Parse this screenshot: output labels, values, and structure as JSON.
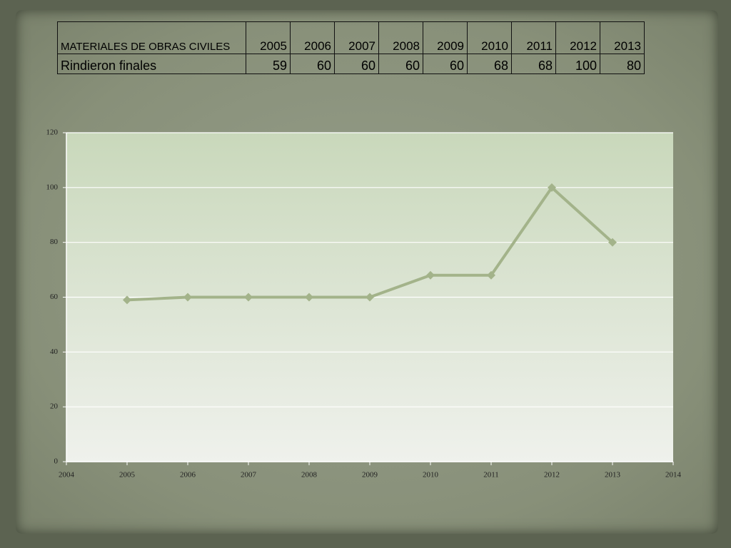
{
  "table": {
    "header": [
      "MATERIALES DE OBRAS CIVILES",
      "2005",
      "2006",
      "2007",
      "2008",
      "2009",
      "2010",
      "2011",
      "2012",
      "2013"
    ],
    "rows": [
      [
        "Rindieron finales",
        59,
        60,
        60,
        60,
        60,
        68,
        68,
        100,
        80
      ]
    ]
  },
  "chart_data": {
    "type": "line",
    "x": [
      2005,
      2006,
      2007,
      2008,
      2009,
      2010,
      2011,
      2012,
      2013
    ],
    "values": [
      59,
      60,
      60,
      60,
      60,
      68,
      68,
      100,
      80
    ],
    "color": "#a3b38a",
    "xlim": [
      2004,
      2014
    ],
    "xticks": [
      2004,
      2005,
      2006,
      2007,
      2008,
      2009,
      2010,
      2011,
      2012,
      2013,
      2014
    ],
    "ylim": [
      0,
      120
    ],
    "yticks": [
      0,
      20,
      40,
      60,
      80,
      100,
      120
    ],
    "grid": true
  }
}
